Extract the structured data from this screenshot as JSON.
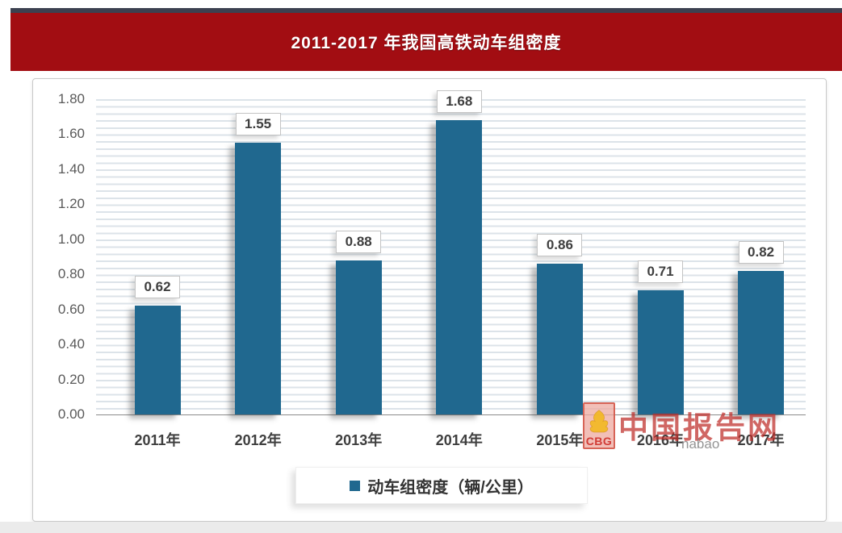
{
  "banner": {
    "title": "2011-2017 年我国高铁动车组密度"
  },
  "chart_data": {
    "type": "bar",
    "title": "2011-2017 年我国高铁动车组密度",
    "categories": [
      "2011年",
      "2012年",
      "2013年",
      "2014年",
      "2015年",
      "2016年",
      "2017年"
    ],
    "values": [
      0.62,
      1.55,
      0.88,
      1.68,
      0.86,
      0.71,
      0.82
    ],
    "value_labels": [
      "0.62",
      "1.55",
      "0.88",
      "1.68",
      "0.86",
      "0.71",
      "0.82"
    ],
    "series_name": "动车组密度（辆/公里）",
    "y_ticks": [
      "0.00",
      "0.20",
      "0.40",
      "0.60",
      "0.80",
      "1.00",
      "1.20",
      "1.40",
      "1.60",
      "1.80"
    ],
    "ylim": [
      0,
      1.8
    ],
    "xlabel": "",
    "ylabel": "",
    "grid": "horizontal-pinstripe",
    "legend_position": "bottom",
    "bar_color": "#20688f"
  },
  "legend": {
    "marker": "■",
    "label": "动车组密度（辆/公里）"
  },
  "watermark": {
    "logo_letters": "CBG",
    "site_name": "中国报告网",
    "url_fragment": "nabao"
  },
  "colors": {
    "banner_red": "#a20d12",
    "top_strip_navy": "#3c4150",
    "bar_teal": "#20688f",
    "watermark_red": "#be2d28",
    "logo_gold": "#f2b824",
    "grid_line": "#dce3e9"
  }
}
